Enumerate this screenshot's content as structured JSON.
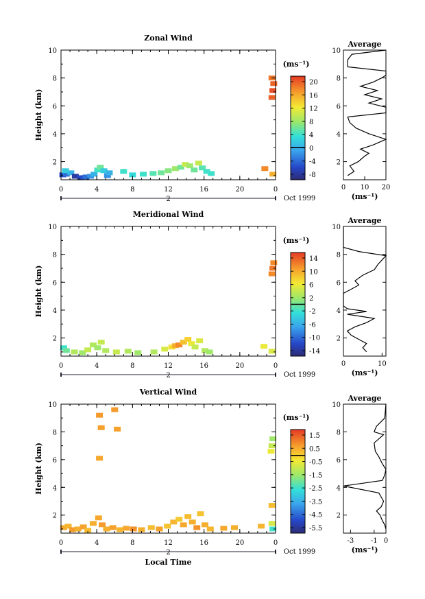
{
  "chart_data": [
    {
      "type": "heatmap",
      "title": "Zonal Wind",
      "ylabel": "Height (km)",
      "xlabel": "",
      "x_ticks": [
        "0",
        "4",
        "8",
        "12",
        "16",
        "20",
        "0"
      ],
      "y_ticks": [
        "2",
        "4",
        "6",
        "8",
        "10"
      ],
      "xlim": [
        0,
        24
      ],
      "ylim": [
        0.7,
        10
      ],
      "date_labels": [
        "2",
        "Oct 1999"
      ],
      "colorbar": {
        "unit": "(ms⁻¹)",
        "ticks": [
          "20",
          "16",
          "12",
          "8",
          "4",
          "0",
          "-4",
          "-8"
        ],
        "range": [
          -10,
          22
        ]
      },
      "cells": [
        [
          0.2,
          1.05,
          -6
        ],
        [
          0.6,
          1.1,
          -4
        ],
        [
          1.1,
          1.2,
          0
        ],
        [
          0.5,
          1.35,
          2
        ],
        [
          1.6,
          0.95,
          -8
        ],
        [
          2.2,
          0.85,
          -6
        ],
        [
          2.8,
          0.9,
          -4
        ],
        [
          3.3,
          0.95,
          -2
        ],
        [
          3.7,
          1.1,
          0
        ],
        [
          4.1,
          1.4,
          4
        ],
        [
          4.4,
          1.6,
          6
        ],
        [
          4.8,
          1.35,
          2
        ],
        [
          5.2,
          1.0,
          -2
        ],
        [
          5.4,
          1.2,
          0
        ],
        [
          7.0,
          1.3,
          4
        ],
        [
          8.0,
          1.05,
          3
        ],
        [
          9.2,
          1.1,
          4
        ],
        [
          10.3,
          1.15,
          5
        ],
        [
          11.2,
          1.2,
          6
        ],
        [
          12.0,
          1.35,
          7
        ],
        [
          12.8,
          1.5,
          8
        ],
        [
          13.4,
          1.6,
          6
        ],
        [
          13.9,
          1.8,
          10
        ],
        [
          14.4,
          1.7,
          8
        ],
        [
          14.9,
          1.4,
          6
        ],
        [
          15.4,
          1.9,
          10
        ],
        [
          15.8,
          1.55,
          5
        ],
        [
          16.3,
          1.3,
          4
        ],
        [
          16.8,
          1.15,
          4
        ],
        [
          22.8,
          1.5,
          18
        ],
        [
          23.7,
          1.1,
          16
        ],
        [
          23.6,
          6.6,
          20
        ],
        [
          23.7,
          7.1,
          21
        ],
        [
          23.8,
          7.6,
          20
        ],
        [
          23.6,
          8.0,
          19
        ]
      ],
      "average_profile": {
        "title": "Average",
        "xlabel": "(ms⁻¹)",
        "x_ticks": [
          "0",
          "10",
          "20"
        ],
        "y_ticks": [
          "2",
          "4",
          "6",
          "8",
          "10"
        ],
        "xlim": [
          0,
          20
        ],
        "ylim": [
          0.7,
          10
        ],
        "x": [
          2,
          5,
          3,
          7,
          10,
          12,
          8,
          14,
          20,
          12,
          6,
          3,
          2,
          20,
          20,
          12,
          18,
          10,
          16,
          8,
          14,
          18,
          20,
          20,
          2,
          2,
          4,
          20
        ],
        "y": [
          1.0,
          1.3,
          1.7,
          2.0,
          2.4,
          2.6,
          2.9,
          3.2,
          3.6,
          4.0,
          4.4,
          4.8,
          5.2,
          5.5,
          5.9,
          6.2,
          6.5,
          6.8,
          7.1,
          7.4,
          7.7,
          8.0,
          8.2,
          8.5,
          8.8,
          9.3,
          9.7,
          10.0
        ]
      }
    },
    {
      "type": "heatmap",
      "title": "Meridional Wind",
      "ylabel": "Height (km)",
      "xlabel": "",
      "x_ticks": [
        "0",
        "4",
        "8",
        "12",
        "16",
        "20",
        "0"
      ],
      "y_ticks": [
        "2",
        "4",
        "6",
        "8",
        "10"
      ],
      "xlim": [
        0,
        24
      ],
      "ylim": [
        0.7,
        10
      ],
      "date_labels": [
        "2",
        "Oct 1999"
      ],
      "colorbar": {
        "unit": "(ms⁻¹)",
        "ticks": [
          "14",
          "10",
          "6",
          "2",
          "-2",
          "-6",
          "-10",
          "-14"
        ],
        "range": [
          -16,
          16
        ]
      },
      "cells": [
        [
          0.3,
          1.3,
          -2
        ],
        [
          0.6,
          1.1,
          0
        ],
        [
          1.5,
          1.0,
          3
        ],
        [
          2.4,
          0.95,
          2
        ],
        [
          3.0,
          1.15,
          4
        ],
        [
          3.6,
          1.5,
          3
        ],
        [
          4.1,
          1.3,
          2
        ],
        [
          4.5,
          1.7,
          4
        ],
        [
          5.0,
          1.1,
          3
        ],
        [
          6.2,
          1.0,
          4
        ],
        [
          7.5,
          1.05,
          3
        ],
        [
          8.6,
          0.95,
          2
        ],
        [
          10.4,
          1.0,
          3
        ],
        [
          11.6,
          1.2,
          5
        ],
        [
          12.4,
          1.35,
          7
        ],
        [
          12.8,
          1.45,
          10
        ],
        [
          13.2,
          1.5,
          12
        ],
        [
          13.7,
          1.7,
          9
        ],
        [
          14.2,
          1.9,
          8
        ],
        [
          14.6,
          1.6,
          6
        ],
        [
          15.0,
          1.35,
          4
        ],
        [
          15.5,
          1.8,
          5
        ],
        [
          16.1,
          1.1,
          3
        ],
        [
          16.6,
          1.0,
          2
        ],
        [
          22.7,
          1.4,
          6
        ],
        [
          23.6,
          1.05,
          5
        ],
        [
          23.6,
          6.6,
          12
        ],
        [
          23.7,
          7.0,
          13
        ],
        [
          23.8,
          7.4,
          12
        ]
      ],
      "average_profile": {
        "title": "Average",
        "xlabel": "(ms⁻¹)",
        "x_ticks": [
          "0",
          "10"
        ],
        "y_ticks": [
          "2",
          "4",
          "6",
          "8",
          "10"
        ],
        "xlim": [
          0,
          11
        ],
        "ylim": [
          0.7,
          10
        ],
        "x": [
          6,
          5,
          6,
          4,
          2,
          1,
          3,
          6,
          8,
          1,
          6,
          1,
          0,
          0,
          2,
          4,
          3,
          5,
          8,
          9,
          10,
          11,
          4,
          0,
          0
        ],
        "y": [
          1.0,
          1.3,
          1.6,
          1.9,
          2.2,
          2.5,
          2.8,
          3.1,
          3.4,
          3.7,
          3.9,
          4.1,
          4.3,
          5.2,
          5.5,
          5.8,
          6.1,
          6.5,
          6.9,
          7.3,
          7.6,
          7.9,
          8.2,
          8.5,
          10.0
        ]
      }
    },
    {
      "type": "heatmap",
      "title": "Vertical Wind",
      "ylabel": "Height (km)",
      "xlabel": "Local Time",
      "x_ticks": [
        "0",
        "4",
        "8",
        "12",
        "16",
        "20",
        "0"
      ],
      "y_ticks": [
        "2",
        "4",
        "6",
        "8",
        "10"
      ],
      "xlim": [
        0,
        24
      ],
      "ylim": [
        0.7,
        10
      ],
      "date_labels": [
        "2",
        "Oct 1999"
      ],
      "colorbar": {
        "unit": "(ms⁻¹)",
        "ticks": [
          "1.5",
          "0.5",
          "-0.5",
          "-1.5",
          "-2.5",
          "-3.5",
          "-4.5",
          "-5.5"
        ],
        "range": [
          -6,
          2
        ]
      },
      "cells": [
        [
          0.3,
          1.1,
          0.6
        ],
        [
          0.8,
          1.2,
          0.4
        ],
        [
          1.3,
          0.95,
          0.8
        ],
        [
          1.9,
          1.0,
          0.5
        ],
        [
          2.5,
          1.15,
          0.7
        ],
        [
          3.0,
          0.9,
          0.3
        ],
        [
          3.6,
          1.4,
          0.5
        ],
        [
          4.2,
          1.8,
          0.6
        ],
        [
          4.6,
          1.3,
          0.8
        ],
        [
          5.1,
          1.0,
          0.5
        ],
        [
          5.8,
          1.1,
          0.7
        ],
        [
          6.6,
          0.95,
          0.4
        ],
        [
          7.3,
          1.05,
          0.6
        ],
        [
          8.1,
          1.0,
          0.9
        ],
        [
          9.0,
          0.95,
          0.5
        ],
        [
          10.1,
          1.1,
          0.3
        ],
        [
          11.0,
          1.0,
          0.7
        ],
        [
          11.9,
          1.2,
          0.2
        ],
        [
          12.6,
          1.5,
          0.4
        ],
        [
          13.2,
          1.7,
          0.1
        ],
        [
          13.7,
          1.3,
          0.6
        ],
        [
          14.2,
          1.9,
          0.3
        ],
        [
          14.7,
          1.5,
          0.5
        ],
        [
          15.2,
          1.1,
          0.9
        ],
        [
          15.6,
          2.1,
          0.2
        ],
        [
          16.1,
          1.3,
          0.5
        ],
        [
          16.7,
          1.0,
          0.4
        ],
        [
          18.2,
          1.05,
          0.6
        ],
        [
          19.4,
          1.1,
          0.5
        ],
        [
          22.4,
          1.2,
          0.4
        ],
        [
          23.6,
          1.4,
          -0.8
        ],
        [
          23.7,
          1.0,
          -2.5
        ],
        [
          23.6,
          2.7,
          0.3
        ],
        [
          4.3,
          9.2,
          0.8
        ],
        [
          4.5,
          8.3,
          0.7
        ],
        [
          6.0,
          9.6,
          0.8
        ],
        [
          6.3,
          8.2,
          0.7
        ],
        [
          4.3,
          6.1,
          0.6
        ],
        [
          23.5,
          6.6,
          -0.5
        ],
        [
          23.6,
          7.0,
          -1.0
        ],
        [
          23.7,
          7.5,
          -1.5
        ]
      ],
      "average_profile": {
        "title": "Average",
        "xlabel": "(ms⁻¹)",
        "x_ticks": [
          "-3",
          "-1",
          "0"
        ],
        "y_ticks": [
          "2",
          "4",
          "6",
          "8",
          "10"
        ],
        "xlim": [
          -3.6,
          0
        ],
        "ylim": [
          0.7,
          10
        ],
        "x": [
          0,
          -0.1,
          -0.3,
          -0.5,
          -0.8,
          -0.4,
          -0.2,
          -0.6,
          -3.6,
          -0.3,
          -0.1,
          0,
          -0.3,
          -0.6,
          -0.9,
          -1.0,
          -0.2,
          -1.0,
          -0.8,
          -0.1,
          0
        ],
        "y": [
          1.0,
          1.3,
          1.6,
          2.0,
          2.3,
          2.6,
          3.0,
          3.6,
          4.1,
          4.5,
          4.9,
          5.3,
          5.7,
          6.2,
          6.6,
          7.2,
          7.8,
          8.0,
          8.4,
          9.0,
          10.0
        ]
      }
    }
  ]
}
